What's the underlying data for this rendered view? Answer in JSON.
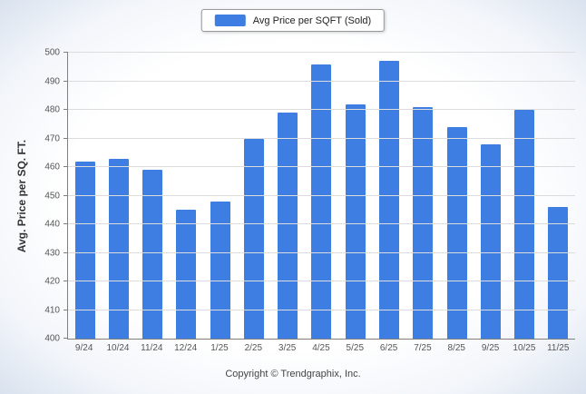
{
  "chart_data": {
    "type": "bar",
    "categories": [
      "9/24",
      "10/24",
      "11/24",
      "12/24",
      "1/25",
      "2/25",
      "3/25",
      "4/25",
      "5/25",
      "6/25",
      "7/25",
      "8/25",
      "9/25",
      "10/25",
      "11/25"
    ],
    "values": [
      462,
      463,
      459,
      445,
      448,
      470,
      479,
      496,
      482,
      497,
      481,
      474,
      468,
      480,
      446
    ],
    "legend_label": "Avg Price per SQFT (Sold)",
    "ylabel": "Avg. Price per SQ. FT.",
    "ylim": [
      400,
      500
    ],
    "ytick_step": 10,
    "bar_color": "#3e7de2",
    "grid": true,
    "legend_position": "top-center"
  },
  "footer": {
    "copyright": "Copyright © Trendgraphix, Inc."
  }
}
